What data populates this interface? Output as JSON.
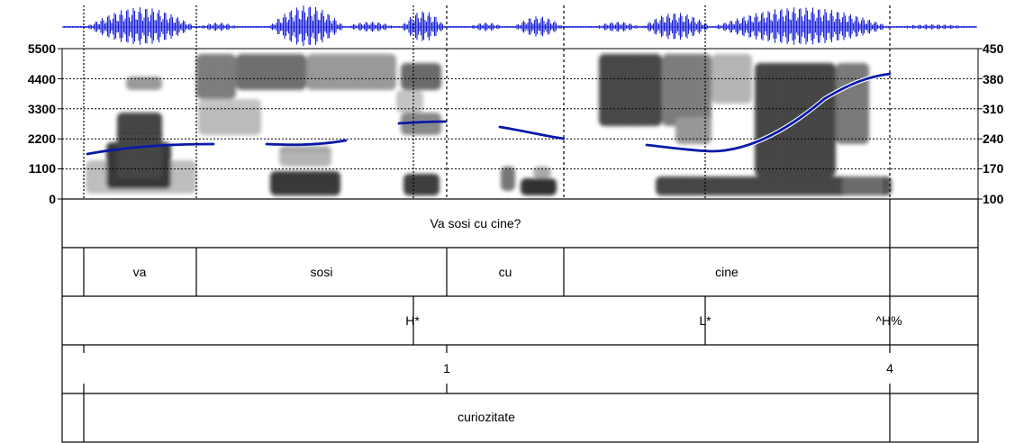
{
  "spectrogram": {
    "freq_axis": {
      "ticks": [
        "5500",
        "4400",
        "3300",
        "2200",
        "1100",
        "0"
      ],
      "range": [
        0,
        5500
      ]
    },
    "f0_axis": {
      "ticks": [
        "450",
        "380",
        "310",
        "240",
        "170",
        "100"
      ],
      "range": [
        100,
        450
      ]
    }
  },
  "tiers": {
    "utterance": {
      "text": "Va sosi cu cine?"
    },
    "words": [
      "va",
      "sosi",
      "cu",
      "cine"
    ],
    "tones": [
      "H*",
      "L*",
      "^H%"
    ],
    "break_indices": [
      "1",
      "4"
    ],
    "function": {
      "text": "curiozitate"
    }
  },
  "colors": {
    "pitch": "#0a1aa8",
    "waveform": "#1a22d8",
    "frame": "#000000"
  }
}
